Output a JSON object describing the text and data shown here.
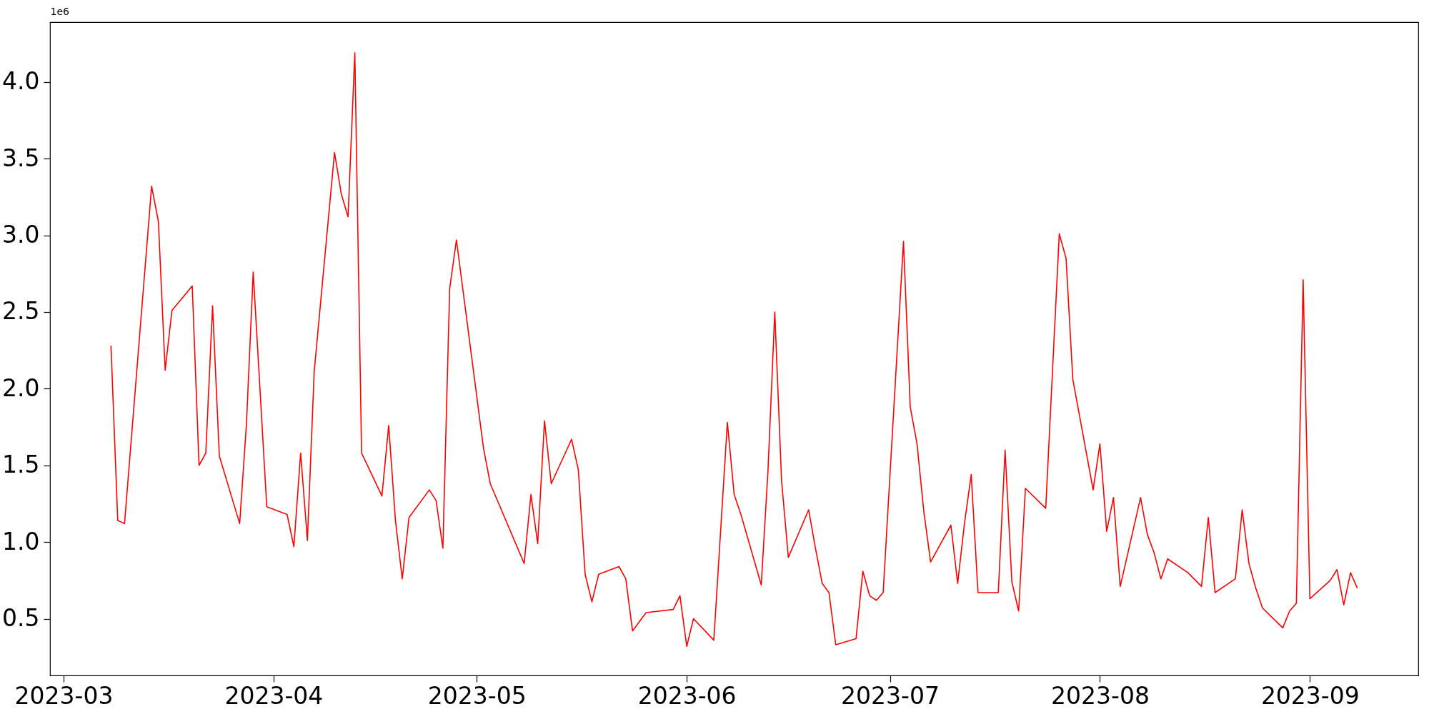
{
  "chart_data": {
    "type": "line",
    "annotations": [
      "1e6"
    ],
    "x": [
      "2023-03-08",
      "2023-03-09",
      "2023-03-10",
      "2023-03-14",
      "2023-03-15",
      "2023-03-16",
      "2023-03-17",
      "2023-03-20",
      "2023-03-21",
      "2023-03-22",
      "2023-03-23",
      "2023-03-24",
      "2023-03-27",
      "2023-03-28",
      "2023-03-29",
      "2023-03-31",
      "2023-04-03",
      "2023-04-04",
      "2023-04-05",
      "2023-04-06",
      "2023-04-07",
      "2023-04-10",
      "2023-04-11",
      "2023-04-12",
      "2023-04-13",
      "2023-04-14",
      "2023-04-17",
      "2023-04-18",
      "2023-04-19",
      "2023-04-20",
      "2023-04-21",
      "2023-04-24",
      "2023-04-25",
      "2023-04-26",
      "2023-04-27",
      "2023-04-28",
      "2023-05-02",
      "2023-05-03",
      "2023-05-08",
      "2023-05-09",
      "2023-05-10",
      "2023-05-11",
      "2023-05-12",
      "2023-05-15",
      "2023-05-16",
      "2023-05-17",
      "2023-05-18",
      "2023-05-19",
      "2023-05-22",
      "2023-05-23",
      "2023-05-24",
      "2023-05-25",
      "2023-05-26",
      "2023-05-30",
      "2023-05-31",
      "2023-06-01",
      "2023-06-02",
      "2023-06-05",
      "2023-06-07",
      "2023-06-08",
      "2023-06-09",
      "2023-06-12",
      "2023-06-13",
      "2023-06-14",
      "2023-06-15",
      "2023-06-16",
      "2023-06-19",
      "2023-06-20",
      "2023-06-21",
      "2023-06-22",
      "2023-06-23",
      "2023-06-26",
      "2023-06-27",
      "2023-06-28",
      "2023-06-29",
      "2023-06-30",
      "2023-07-03",
      "2023-07-04",
      "2023-07-05",
      "2023-07-06",
      "2023-07-07",
      "2023-07-10",
      "2023-07-11",
      "2023-07-12",
      "2023-07-13",
      "2023-07-14",
      "2023-07-17",
      "2023-07-18",
      "2023-07-19",
      "2023-07-20",
      "2023-07-21",
      "2023-07-24",
      "2023-07-26",
      "2023-07-27",
      "2023-07-28",
      "2023-07-31",
      "2023-08-01",
      "2023-08-02",
      "2023-08-03",
      "2023-08-04",
      "2023-08-07",
      "2023-08-08",
      "2023-08-09",
      "2023-08-10",
      "2023-08-11",
      "2023-08-14",
      "2023-08-16",
      "2023-08-17",
      "2023-08-18",
      "2023-08-21",
      "2023-08-22",
      "2023-08-23",
      "2023-08-24",
      "2023-08-25",
      "2023-08-28",
      "2023-08-29",
      "2023-08-30",
      "2023-08-31",
      "2023-09-01",
      "2023-09-04",
      "2023-09-05",
      "2023-09-06",
      "2023-09-07",
      "2023-09-08"
    ],
    "series": [
      {
        "color": "#ff0000",
        "values": [
          2.28,
          1.14,
          1.12,
          3.32,
          3.09,
          2.12,
          2.51,
          2.67,
          1.5,
          1.58,
          2.54,
          1.56,
          1.12,
          1.77,
          2.76,
          1.23,
          1.18,
          0.97,
          1.58,
          1.01,
          2.11,
          3.54,
          3.27,
          3.12,
          4.19,
          1.58,
          1.3,
          1.76,
          1.14,
          0.76,
          1.16,
          1.34,
          1.27,
          0.96,
          2.65,
          2.97,
          1.61,
          1.38,
          0.86,
          1.31,
          0.99,
          1.79,
          1.38,
          1.67,
          1.47,
          0.79,
          0.61,
          0.79,
          0.84,
          0.76,
          0.42,
          0.48,
          0.54,
          0.56,
          0.65,
          0.32,
          0.5,
          0.36,
          1.78,
          1.31,
          1.18,
          0.72,
          1.47,
          2.5,
          1.4,
          0.9,
          1.21,
          0.96,
          0.73,
          0.67,
          0.33,
          0.37,
          0.81,
          0.65,
          0.62,
          0.67,
          2.96,
          1.88,
          1.64,
          1.2,
          0.87,
          1.11,
          0.73,
          1.12,
          1.44,
          0.67,
          0.67,
          1.6,
          0.74,
          0.55,
          1.35,
          1.22,
          3.01,
          2.85,
          2.06,
          1.34,
          1.64,
          1.07,
          1.29,
          0.71,
          1.29,
          1.05,
          0.93,
          0.76,
          0.89,
          0.8,
          0.71,
          1.16,
          0.67,
          0.76,
          1.21,
          0.86,
          0.7,
          0.57,
          0.44,
          0.55,
          0.6,
          2.71,
          0.63,
          0.75,
          0.82,
          0.59,
          0.8,
          0.7
        ]
      }
    ],
    "xlim": [
      "2023-02-27",
      "2023-09-17"
    ],
    "xticks": [
      {
        "value": "2023-03-01",
        "label": "2023-03"
      },
      {
        "value": "2023-04-01",
        "label": "2023-04"
      },
      {
        "value": "2023-05-01",
        "label": "2023-05"
      },
      {
        "value": "2023-06-01",
        "label": "2023-06"
      },
      {
        "value": "2023-07-01",
        "label": "2023-07"
      },
      {
        "value": "2023-08-01",
        "label": "2023-08"
      },
      {
        "value": "2023-09-01",
        "label": "2023-09"
      }
    ],
    "ylim": [
      0.13,
      4.39
    ],
    "yticks": [
      0.5,
      {
        "value": 1,
        "label": "1.0"
      },
      1.5,
      {
        "value": 2,
        "label": "2.0"
      },
      2.5,
      {
        "value": 3,
        "label": "3.0"
      },
      3.5,
      {
        "value": 4,
        "label": "4.0"
      }
    ],
    "grid": false,
    "marker": "none",
    "line_style": "solid"
  }
}
